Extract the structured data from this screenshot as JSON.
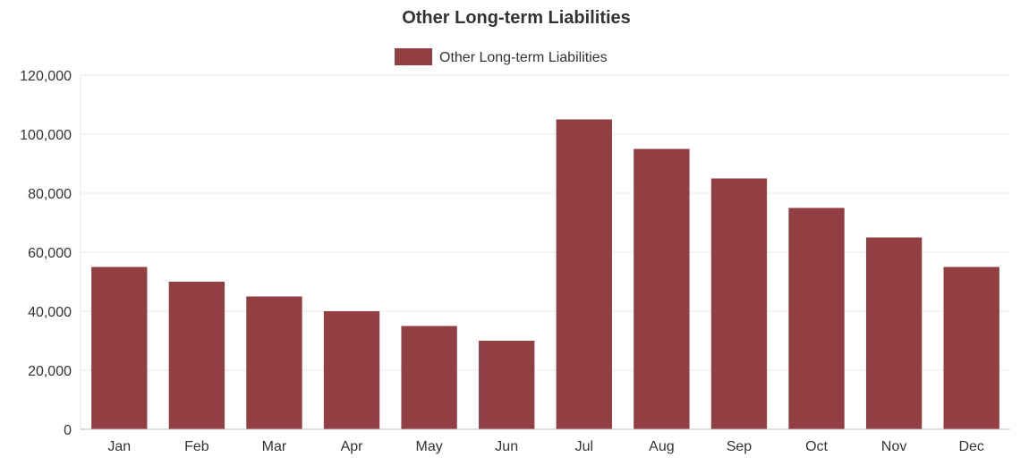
{
  "chart_data": {
    "type": "bar",
    "title": "Other Long-term Liabilities",
    "legend": {
      "position": "top"
    },
    "categories": [
      "Jan",
      "Feb",
      "Mar",
      "Apr",
      "May",
      "Jun",
      "Jul",
      "Aug",
      "Sep",
      "Oct",
      "Nov",
      "Dec"
    ],
    "series": [
      {
        "name": "Other Long-term Liabilities",
        "color": "#923f44",
        "values": [
          55000,
          50000,
          45000,
          40000,
          35000,
          30000,
          105000,
          95000,
          85000,
          75000,
          65000,
          55000
        ]
      }
    ],
    "xlabel": "",
    "ylabel": "",
    "ylim": [
      0,
      120000
    ],
    "yticks": [
      "0",
      "20,000",
      "40,000",
      "60,000",
      "80,000",
      "100,000",
      "120,000"
    ],
    "grid": true
  }
}
